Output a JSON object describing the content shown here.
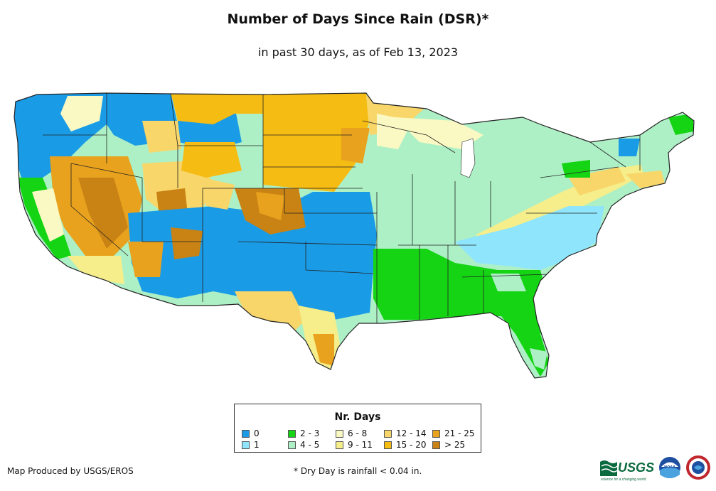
{
  "title": "Number of Days Since Rain (DSR)*",
  "subtitle": "in past 30 days, as of Feb 13, 2023",
  "legend": {
    "title": "Nr. Days",
    "items": [
      {
        "label": "0",
        "color": "#1a9be6"
      },
      {
        "label": "1",
        "color": "#8fe5fb"
      },
      {
        "label": "2 - 3",
        "color": "#14d414"
      },
      {
        "label": "4 - 5",
        "color": "#aef0c6"
      },
      {
        "label": "6 - 8",
        "color": "#fbf9c3"
      },
      {
        "label": "9 - 11",
        "color": "#f5ee8a"
      },
      {
        "label": "12 - 14",
        "color": "#f8d66a"
      },
      {
        "label": "15 - 20",
        "color": "#f5bc14"
      },
      {
        "label": "21 - 25",
        "color": "#e8a21e"
      },
      {
        "label": "> 25",
        "color": "#c98214"
      }
    ]
  },
  "credit": "Map Produced by USGS/EROS",
  "footnote": "* Dry Day is rainfall < 0.04 in.",
  "logos": {
    "usgs": "USGS",
    "usgs_tagline": "science for a changing world",
    "noaa": "NOAA"
  }
}
